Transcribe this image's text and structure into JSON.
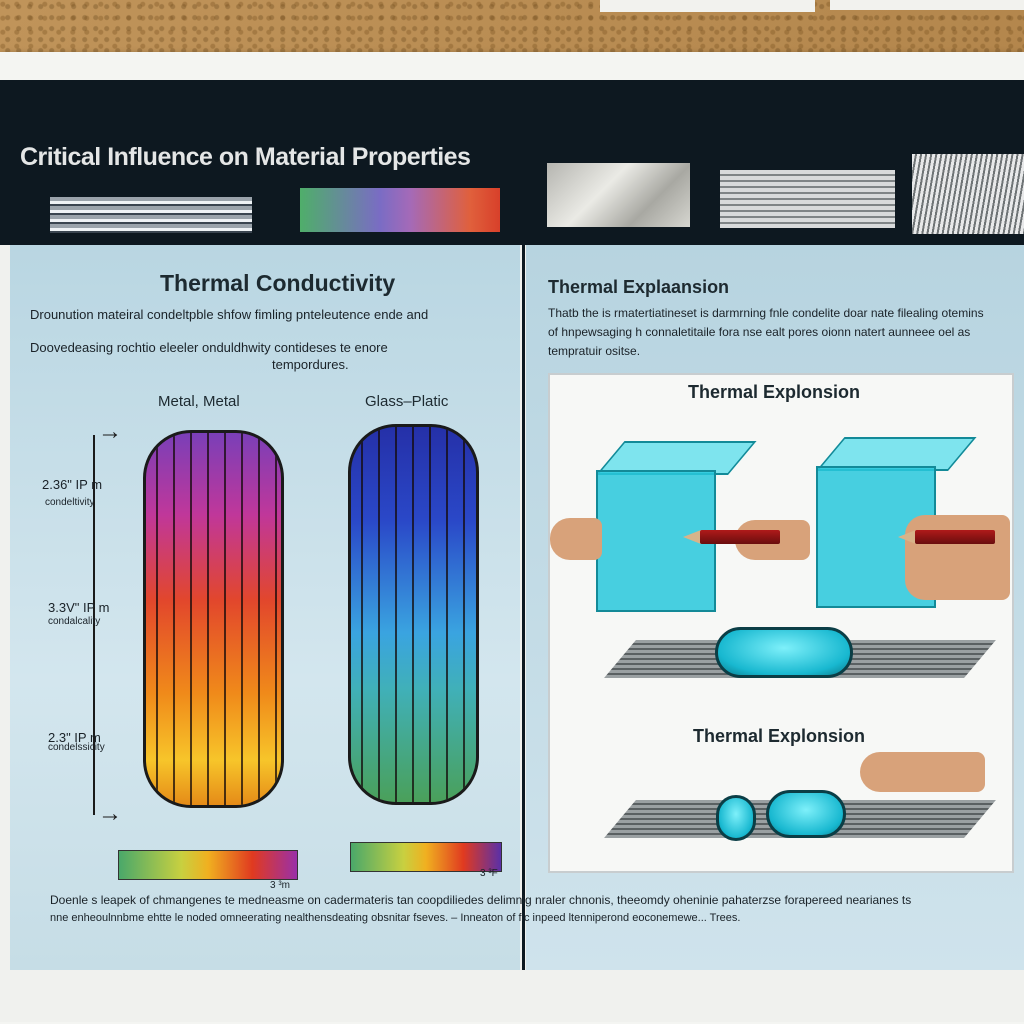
{
  "header": {
    "title": "Critical Influence on Material Properties"
  },
  "left_panel": {
    "heading": "Thermal Conductivity",
    "line1": "Drounution mateiral condeltpble shfow fimling pnteleutence ende and",
    "line2": "Doovedeasing rochtio eleeler onduldhwity contideses te enore",
    "line3": "tempordures.",
    "label_metal": "Metal, Metal",
    "label_glass": "Glass–Platic",
    "axis_labels": [
      {
        "value": "2.36\" IP m",
        "caption": "condeltivity"
      },
      {
        "value": "3.3V\" IP m",
        "caption": "condalcality"
      },
      {
        "value": "2.3\" IP m",
        "caption": "condelssicity"
      }
    ],
    "scale1_end": "3 ³m",
    "scale2_end": "3 ³F"
  },
  "right_panel": {
    "heading": "Thermal Explaansion",
    "line1": "Thatb the is rmatertiatineset is darmrning fnle condelite doar nate filealing otemins",
    "line2": "of hnpewsaging h connaletitaile fora nse ealt pores oionn natert aunneee oel as",
    "line3": "tempratuir ositse.",
    "diagram_title1": "Thermal Explonsion",
    "diagram_title2": "Thermal Explonsion"
  },
  "footer": {
    "line1": "Doenle s leapek of chmangenes te medneasme on cadermateris tan coopdiliedes delimnig nraler chnonis, theeomdy oheninie pahaterzse forapereed nearianes ts",
    "line2": "nne enheoulnnbme ehtte le noded omneerating nealthensdeating obsnitar fseves. – Inneaton of fic inpeed ltenniperond eoconemewe...    Trees."
  },
  "colors": {
    "header_band": "#0d1820",
    "panel_blue": "#b9d6e2",
    "cube_cyan": "#28c8dc"
  }
}
